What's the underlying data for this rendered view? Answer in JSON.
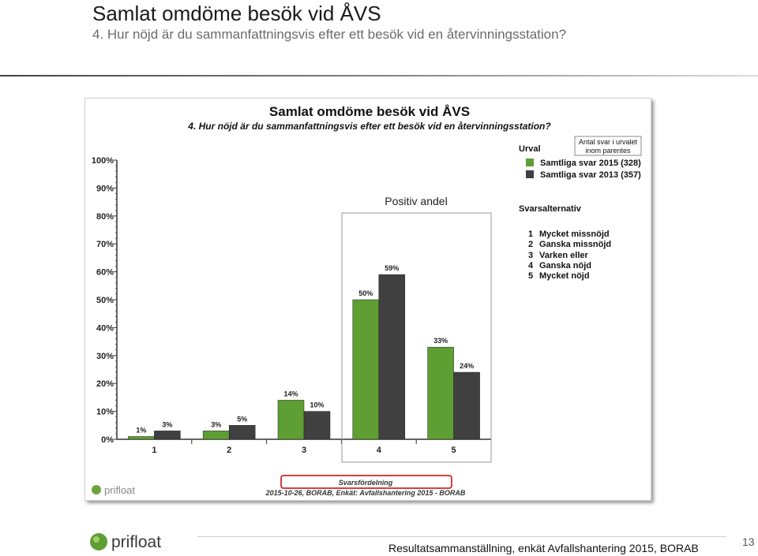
{
  "slide": {
    "title": "Samlat omdöme besök vid ÅVS",
    "subtitle": "4. Hur nöjd är du sammanfattningsvis efter ett besök vid en återvinningsstation?",
    "footer_text": "Resultatsammanställning, enkät Avfallshantering 2015, BORAB",
    "page_number": "13",
    "logo_text": "prifloat"
  },
  "colors": {
    "series_2015": "#5e9e33",
    "series_2013": "#404040",
    "highlight_box": "#cc0000",
    "positive_box": "#9a9a9a"
  },
  "chart_data": {
    "type": "bar",
    "title": "Samlat omdöme besök vid ÅVS",
    "subtitle": "4. Hur nöjd är du sammanfattningsvis efter ett besök vid en återvinningsstation?",
    "categories": [
      "1",
      "2",
      "3",
      "4",
      "5"
    ],
    "series": [
      {
        "name": "Samtliga svar 2015 (328)",
        "values": [
          1,
          3,
          14,
          50,
          33
        ],
        "labels": [
          "1%",
          "3%",
          "14%",
          "50%",
          "33%"
        ]
      },
      {
        "name": "Samtliga svar 2013 (357)",
        "values": [
          3,
          5,
          10,
          59,
          24
        ],
        "labels": [
          "3%",
          "5%",
          "10%",
          "59%",
          "24%"
        ]
      }
    ],
    "ylim": [
      0,
      100
    ],
    "yticks": [
      "0%",
      "10%",
      "20%",
      "30%",
      "40%",
      "50%",
      "60%",
      "70%",
      "80%",
      "90%",
      "100%"
    ],
    "xlabel": "Svarsfördelning",
    "source_note": "2015-10-26, BORAB, Enkät: Avfallshantering 2015 - BORAB",
    "positive_share_label": "Positiv andel",
    "legend": {
      "title": "Urval",
      "note": [
        "Antal svar i urvalet",
        "inom parentes"
      ],
      "position": "top-right"
    },
    "answer_options": {
      "title": "Svarsalternativ",
      "items": [
        {
          "num": "1",
          "text": "Mycket missnöjd"
        },
        {
          "num": "2",
          "text": "Ganska missnöjd"
        },
        {
          "num": "3",
          "text": "Varken eller"
        },
        {
          "num": "4",
          "text": "Ganska nöjd"
        },
        {
          "num": "5",
          "text": "Mycket nöjd"
        }
      ]
    },
    "grid": false
  }
}
